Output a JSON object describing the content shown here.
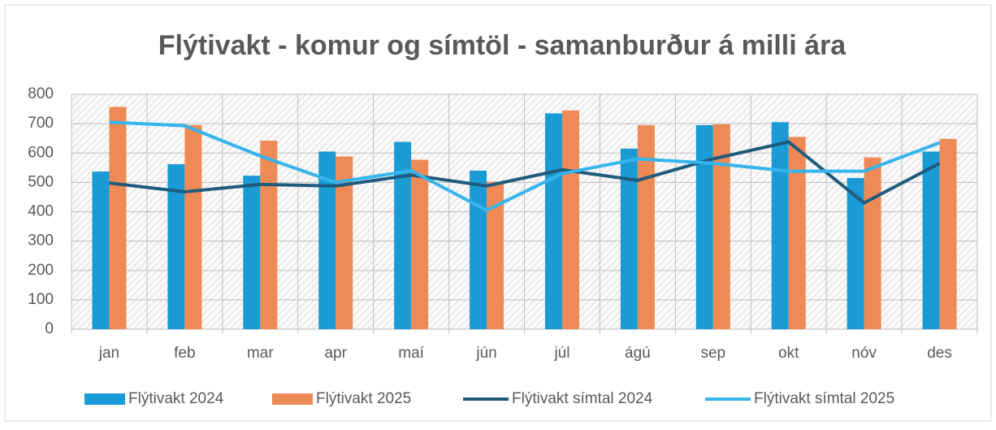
{
  "chart_data": {
    "type": "bar",
    "title": "Flýtivakt - komur og símtöl - samanburður á milli ára",
    "categories": [
      "jan",
      "feb",
      "mar",
      "apr",
      "maí",
      "jún",
      "júl",
      "ágú",
      "sep",
      "okt",
      "nóv",
      "des"
    ],
    "series": [
      {
        "name": "Flýtivakt 2024",
        "type": "bar",
        "color": "#1a9bd5",
        "values": [
          537,
          562,
          523,
          605,
          638,
          540,
          735,
          615,
          695,
          705,
          515,
          605
        ]
      },
      {
        "name": "Flýtivakt 2025",
        "type": "bar",
        "color": "#ee8a55",
        "values": [
          757,
          695,
          642,
          588,
          577,
          502,
          745,
          695,
          698,
          655,
          585,
          648
        ]
      },
      {
        "name": "Flýtivakt símtal 2024",
        "type": "line",
        "color": "#1e5b7c",
        "values": [
          498,
          468,
          493,
          488,
          525,
          488,
          543,
          507,
          580,
          638,
          430,
          565
        ]
      },
      {
        "name": "Flýtivakt símtal 2025",
        "type": "line",
        "color": "#35b5ec",
        "values": [
          705,
          693,
          590,
          500,
          540,
          405,
          530,
          580,
          565,
          538,
          538,
          635
        ]
      }
    ],
    "ylim": [
      0,
      800
    ],
    "yticks": [
      0,
      100,
      200,
      300,
      400,
      500,
      600,
      700,
      800
    ],
    "grid": true,
    "legend": "bottom"
  }
}
